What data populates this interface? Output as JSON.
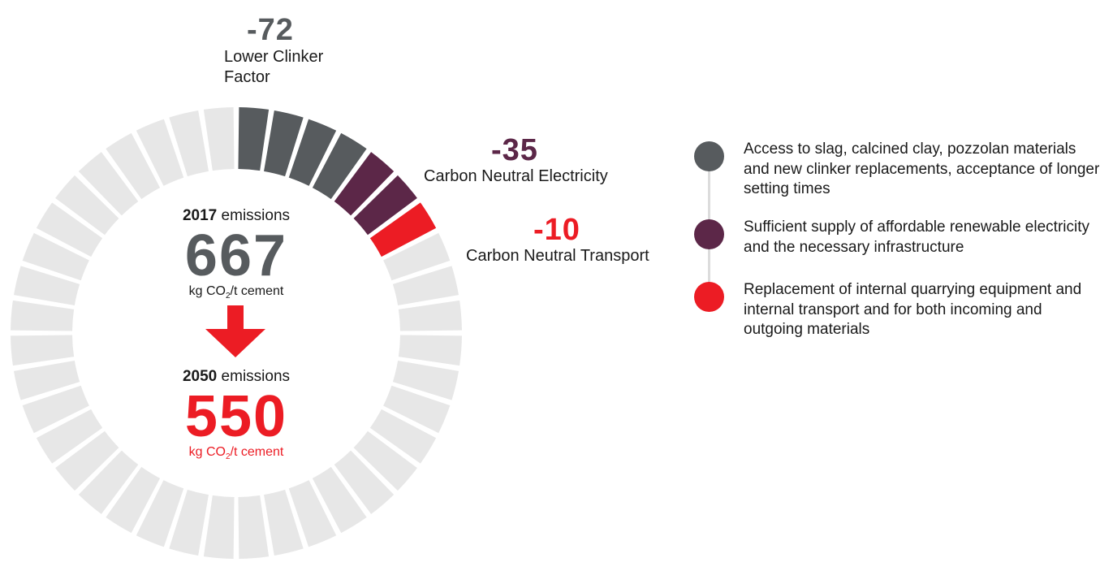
{
  "chart_data": {
    "type": "radial-segmented-bar",
    "total_segments": 40,
    "baseline": {
      "year": "2017",
      "suffix": " emissions",
      "value": "667",
      "unit_prefix": "kg CO",
      "unit_sub": "2",
      "unit_suffix": "/t cement"
    },
    "target": {
      "year": "2050",
      "suffix": " emissions",
      "value": "550",
      "unit_prefix": "kg CO",
      "unit_sub": "2",
      "unit_suffix": "/t cement"
    },
    "reductions": [
      {
        "value": "-72",
        "label_lines": [
          "Lower Clinker",
          "Factor"
        ],
        "segments": 4,
        "color": "#575b5e",
        "description": "Access to slag, calcined clay, pozzolan materials and new clinker replacements, acceptance of longer setting times"
      },
      {
        "value": "-35",
        "label_lines": [
          "Carbon Neutral Electricity"
        ],
        "segments": 2,
        "color": "#5c2748",
        "description": "Sufficient supply of affordable renewable electricity and the necessary infrastructure"
      },
      {
        "value": "-10",
        "label_lines": [
          "Carbon Neutral Transport"
        ],
        "segments": 1,
        "color": "#ec1c24",
        "description": "Replacement of internal quarrying equipment and internal transport and for both incoming and outgoing materials"
      }
    ],
    "remaining_color": "#e7e7e7"
  },
  "colors": {
    "arrow": "#ec1c24",
    "baseline_value": "#575b5e",
    "target_value": "#ec1c24",
    "connector": "#dcdcdc"
  }
}
